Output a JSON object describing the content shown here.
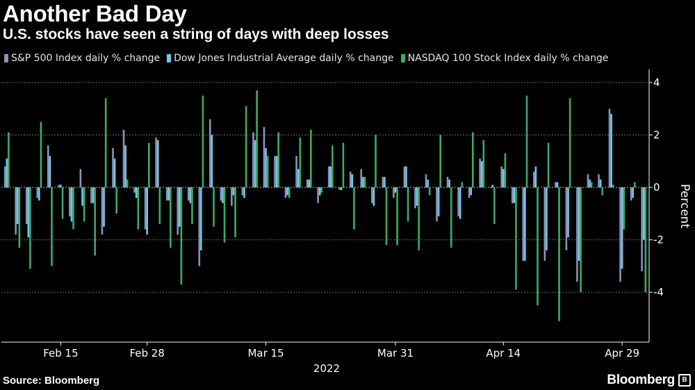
{
  "chart_data": {
    "type": "bar",
    "title": "Another Bad Day",
    "subtitle": "U.S. stocks have seen a string of days with deep losses",
    "ylabel": "Percent",
    "xlabel": "2022",
    "ylim": [
      -5.9,
      4.5
    ],
    "yticks": [
      4,
      2,
      0,
      -2,
      -4
    ],
    "xtick_labels": [
      {
        "label": "Feb 15",
        "index": 5
      },
      {
        "label": "Feb 28",
        "index": 13
      },
      {
        "label": "Mar 15",
        "index": 24
      },
      {
        "label": "Mar 31",
        "index": 36
      },
      {
        "label": "Apr 14",
        "index": 46
      },
      {
        "label": "Apr 29",
        "index": 57
      }
    ],
    "grid": true,
    "legend_position": "top-left",
    "series": [
      {
        "name": "S&P 500 Index daily % change",
        "color": "#8a93b8",
        "values": [
          0.8,
          -1.8,
          -1.4,
          -0.4,
          1.6,
          0.1,
          -1.1,
          0.7,
          -0.6,
          -1.8,
          1.5,
          2.2,
          -0.2,
          -1.6,
          1.9,
          -0.5,
          -1.8,
          -0.5,
          -3.0,
          2.6,
          -0.5,
          -0.7,
          -0.3,
          2.1,
          2.3,
          1.2,
          -0.4,
          1.2,
          0.3,
          -0.6,
          0.8,
          -0.1,
          0.6,
          0.7,
          -0.6,
          0.4,
          -0.4,
          0.8,
          -0.8,
          0.5,
          -1.3,
          0.4,
          -1.1,
          -0.4,
          1.1,
          0.0,
          0.8,
          -0.6,
          -2.8,
          0.6,
          -2.8,
          0.2,
          -2.4,
          -3.6,
          0.5,
          0.5,
          3.0,
          -3.6,
          -0.5,
          -3.2
        ]
      },
      {
        "name": "Dow Jones Industrial Average daily % change",
        "color": "#6ec9e8",
        "values": [
          1.1,
          -1.4,
          -1.9,
          -0.5,
          1.2,
          0.1,
          -1.3,
          -0.7,
          -0.6,
          -1.5,
          1.1,
          1.6,
          -0.4,
          -1.8,
          1.8,
          -0.5,
          -1.5,
          -0.6,
          -2.4,
          2.0,
          -0.6,
          -0.3,
          -0.4,
          1.8,
          1.5,
          1.2,
          -0.3,
          0.7,
          0.3,
          -0.3,
          0.8,
          -0.1,
          0.5,
          0.4,
          -0.7,
          0.4,
          -0.2,
          0.8,
          -0.7,
          0.3,
          -1.1,
          0.3,
          -1.2,
          -0.3,
          1.0,
          0.1,
          0.7,
          -0.6,
          -2.8,
          0.8,
          -2.4,
          0.2,
          -1.9,
          -2.8,
          0.3,
          0.3,
          2.8,
          -3.1,
          -0.4,
          -2.0
        ]
      },
      {
        "name": "NASDAQ 100 Stock Index daily % change",
        "color": "#3dac63",
        "values": [
          2.1,
          -2.3,
          -3.1,
          2.5,
          -3.0,
          -1.2,
          -1.6,
          -1.3,
          -2.6,
          3.4,
          -1.0,
          0.3,
          -1.6,
          1.7,
          -1.4,
          -2.3,
          -3.7,
          -1.4,
          3.5,
          -1.5,
          -2.1,
          -1.9,
          3.1,
          3.7,
          1.2,
          2.1,
          -0.4,
          1.9,
          2.2,
          -0.2,
          1.6,
          1.7,
          -1.6,
          0.4,
          2.0,
          -2.2,
          -2.2,
          -1.3,
          -2.4,
          -0.3,
          2.0,
          -2.3,
          0.2,
          2.1,
          1.8,
          -1.4,
          1.3,
          -3.9,
          3.5,
          -4.5,
          1.7,
          -5.1,
          3.4,
          -4.0,
          0.2,
          -0.3,
          0.1,
          -1.6,
          0.2,
          -4.0
        ]
      }
    ]
  },
  "footer": {
    "source": "Source: Bloomberg",
    "brand": "Bloomberg",
    "brand_mark": "B"
  }
}
